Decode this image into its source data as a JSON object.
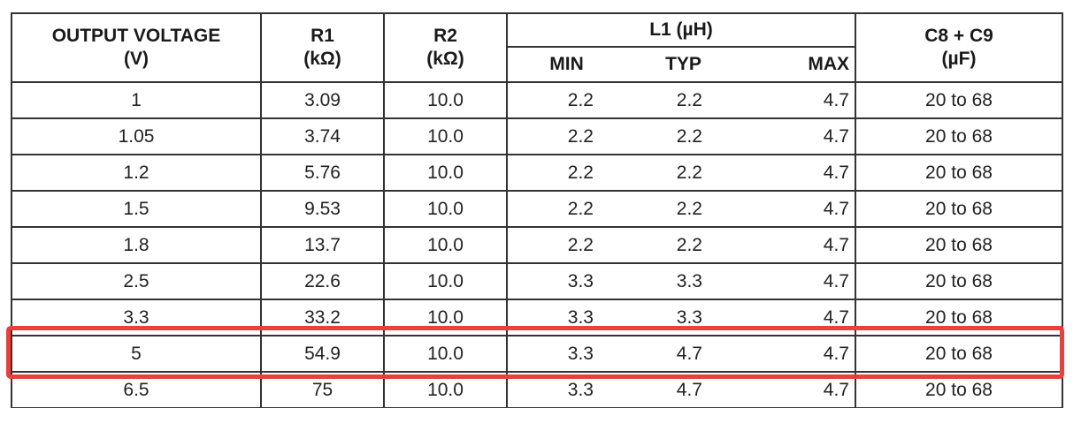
{
  "header": {
    "output_voltage": "OUTPUT VOLTAGE",
    "output_voltage_unit": "(V)",
    "r1": "R1",
    "r1_unit": "(kΩ)",
    "r2": "R2",
    "r2_unit": "(kΩ)",
    "l1": "L1 (µH)",
    "min": "MIN",
    "typ": "TYP",
    "max": "MAX",
    "c8c9": "C8 + C9",
    "c8c9_unit": "(µF)"
  },
  "rows": [
    {
      "vout": "1",
      "r1": "3.09",
      "r2": "10.0",
      "min": "2.2",
      "typ": "2.2",
      "max": "4.7",
      "cap": "20 to 68"
    },
    {
      "vout": "1.05",
      "r1": "3.74",
      "r2": "10.0",
      "min": "2.2",
      "typ": "2.2",
      "max": "4.7",
      "cap": "20 to 68"
    },
    {
      "vout": "1.2",
      "r1": "5.76",
      "r2": "10.0",
      "min": "2.2",
      "typ": "2.2",
      "max": "4.7",
      "cap": "20 to 68"
    },
    {
      "vout": "1.5",
      "r1": "9.53",
      "r2": "10.0",
      "min": "2.2",
      "typ": "2.2",
      "max": "4.7",
      "cap": "20 to 68"
    },
    {
      "vout": "1.8",
      "r1": "13.7",
      "r2": "10.0",
      "min": "2.2",
      "typ": "2.2",
      "max": "4.7",
      "cap": "20 to 68"
    },
    {
      "vout": "2.5",
      "r1": "22.6",
      "r2": "10.0",
      "min": "3.3",
      "typ": "3.3",
      "max": "4.7",
      "cap": "20 to 68"
    },
    {
      "vout": "3.3",
      "r1": "33.2",
      "r2": "10.0",
      "min": "3.3",
      "typ": "3.3",
      "max": "4.7",
      "cap": "20 to 68"
    },
    {
      "vout": "5",
      "r1": "54.9",
      "r2": "10.0",
      "min": "3.3",
      "typ": "4.7",
      "max": "4.7",
      "cap": "20 to 68"
    },
    {
      "vout": "6.5",
      "r1": "75",
      "r2": "10.0",
      "min": "3.3",
      "typ": "4.7",
      "max": "4.7",
      "cap": "20 to 68"
    }
  ],
  "colors": {
    "highlight": "#e8413b",
    "border": "#333333"
  }
}
